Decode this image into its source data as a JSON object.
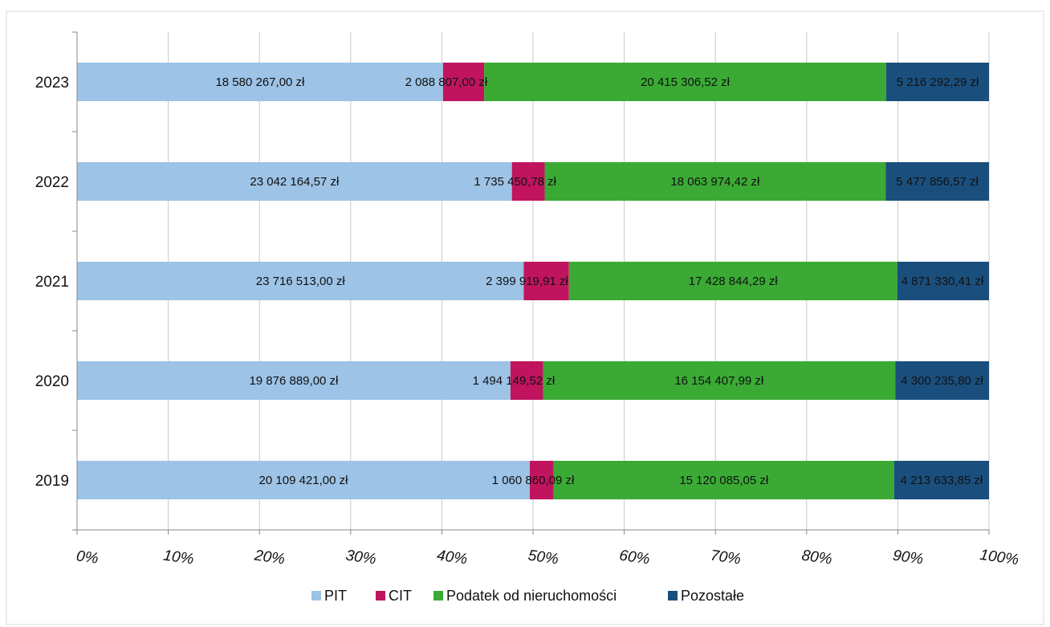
{
  "chart_data": {
    "type": "bar",
    "orientation": "horizontal",
    "stacking": "percent",
    "categories": [
      "2023",
      "2022",
      "2021",
      "2020",
      "2019"
    ],
    "series": [
      {
        "name": "PIT",
        "color": "#9dc3e6",
        "values": [
          18580267.0,
          23042164.57,
          23716513.0,
          19876889.0,
          20109421.0
        ],
        "labels": [
          "18 580 267,00 zł",
          "23 042 164,57 zł",
          "23 716 513,00 zł",
          "19 876 889,00 zł",
          "20 109 421,00 zł"
        ]
      },
      {
        "name": "CIT",
        "color": "#c0145f",
        "values": [
          2088807.0,
          1735450.78,
          2399919.91,
          1494149.52,
          1060860.09
        ],
        "labels": [
          "2 088 807,00 zł",
          "1 735 450,78 zł",
          "2 399 919,91 zł",
          "1 494 149,52 zł",
          "1 060 860,09 zł"
        ]
      },
      {
        "name": "Podatek od nieruchomości",
        "color": "#3aaa35",
        "values": [
          20415306.52,
          18063974.42,
          17428844.29,
          16154407.99,
          15120085.05
        ],
        "labels": [
          "20 415 306,52 zł",
          "18 063 974,42 zł",
          "17 428 844,29 zł",
          "16 154 407,99 zł",
          "15 120 085,05 zł"
        ]
      },
      {
        "name": "Pozostałe",
        "color": "#1a4f7d",
        "values": [
          5216292.29,
          5477856.57,
          4871330.41,
          4300235.8,
          4213633.85
        ],
        "labels": [
          "5 216 292,29 zł",
          "5 477 856,57 zł",
          "4 871 330,41 zł",
          "4 300 235,80 zł",
          "4 213 633,85 zł"
        ]
      }
    ],
    "xticks": [
      "0%",
      "10%",
      "20%",
      "30%",
      "40%",
      "50%",
      "60%",
      "70%",
      "80%",
      "90%",
      "100%"
    ],
    "xlim": [
      0,
      100
    ],
    "grid": true,
    "legend_position": "bottom"
  }
}
